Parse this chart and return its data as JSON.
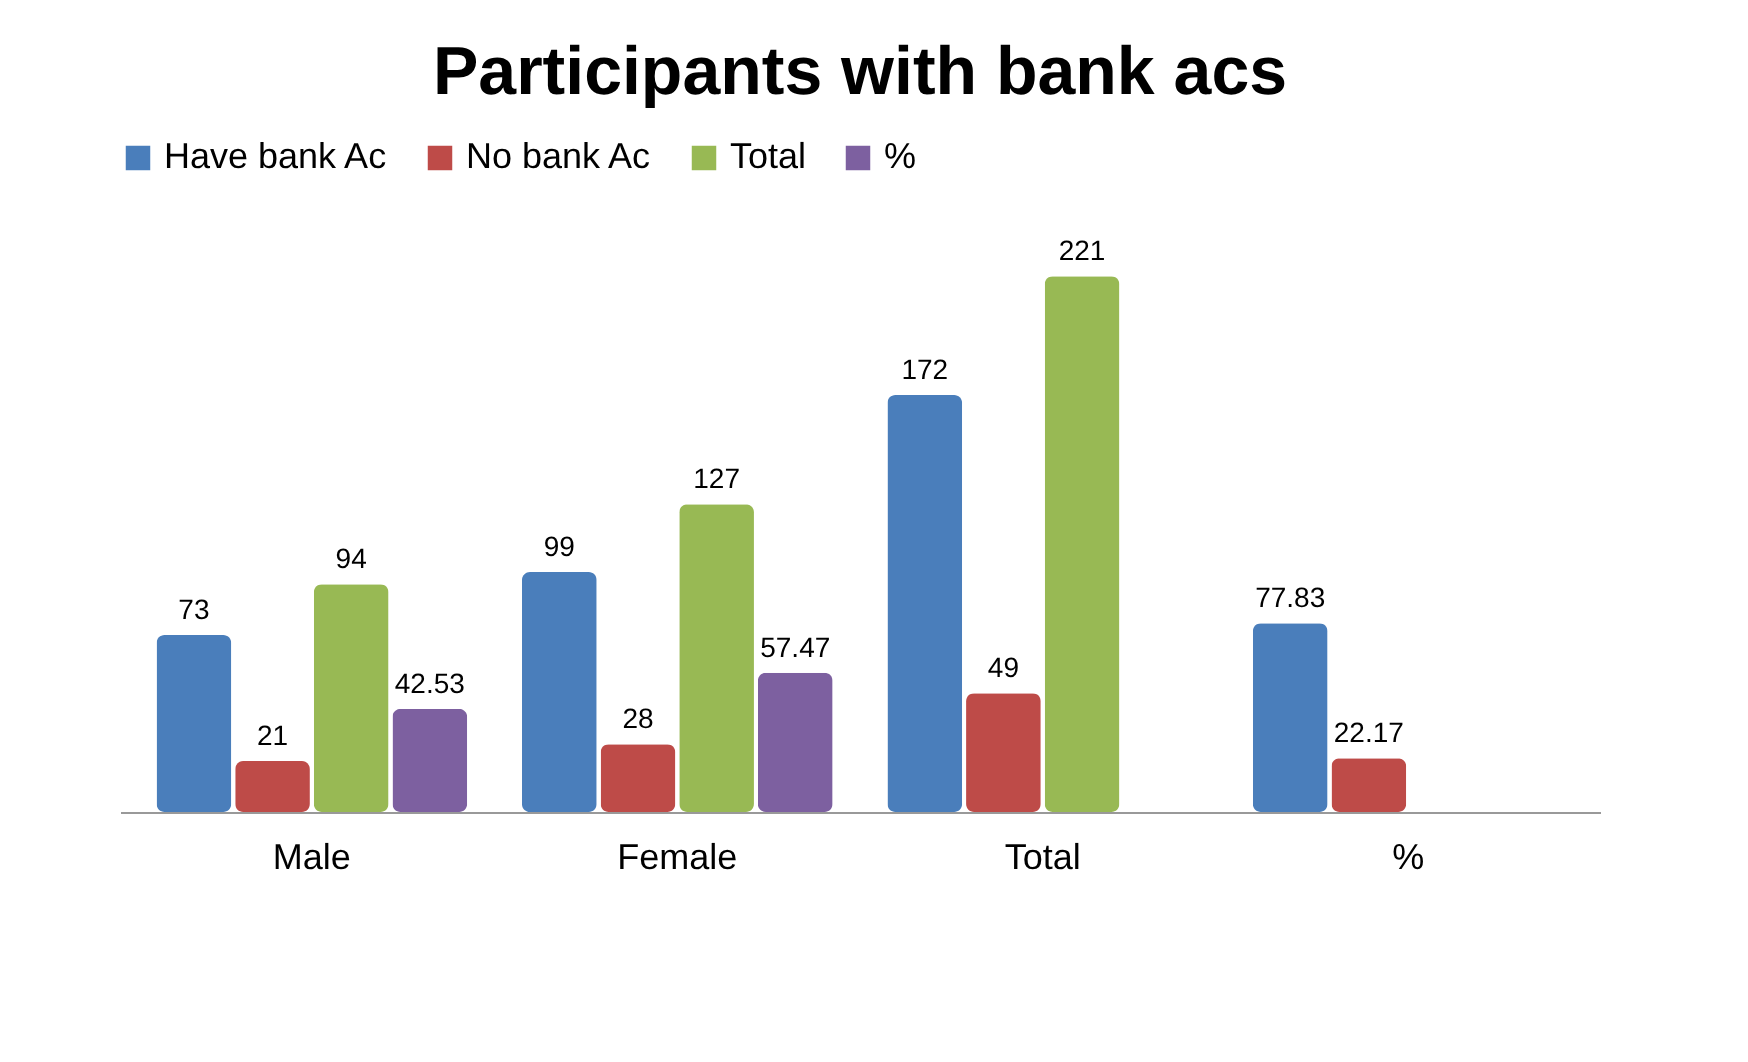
{
  "chart_data": {
    "type": "bar",
    "title": "Participants with bank acs",
    "categories": [
      "Male",
      "Female",
      "Total",
      "%"
    ],
    "series": [
      {
        "name": "Have bank Ac",
        "color": "#4a7ebb",
        "values": [
          73,
          99,
          172,
          77.83
        ]
      },
      {
        "name": "No bank Ac",
        "color": "#be4b48",
        "values": [
          21,
          28,
          49,
          22.17
        ]
      },
      {
        "name": "Total",
        "color": "#98b954",
        "values": [
          94,
          127,
          221,
          null
        ]
      },
      {
        "name": "%",
        "color": "#7d60a0",
        "values": [
          42.53,
          57.47,
          null,
          null
        ]
      }
    ],
    "data_labels": true,
    "legend": "top",
    "grid": false
  }
}
